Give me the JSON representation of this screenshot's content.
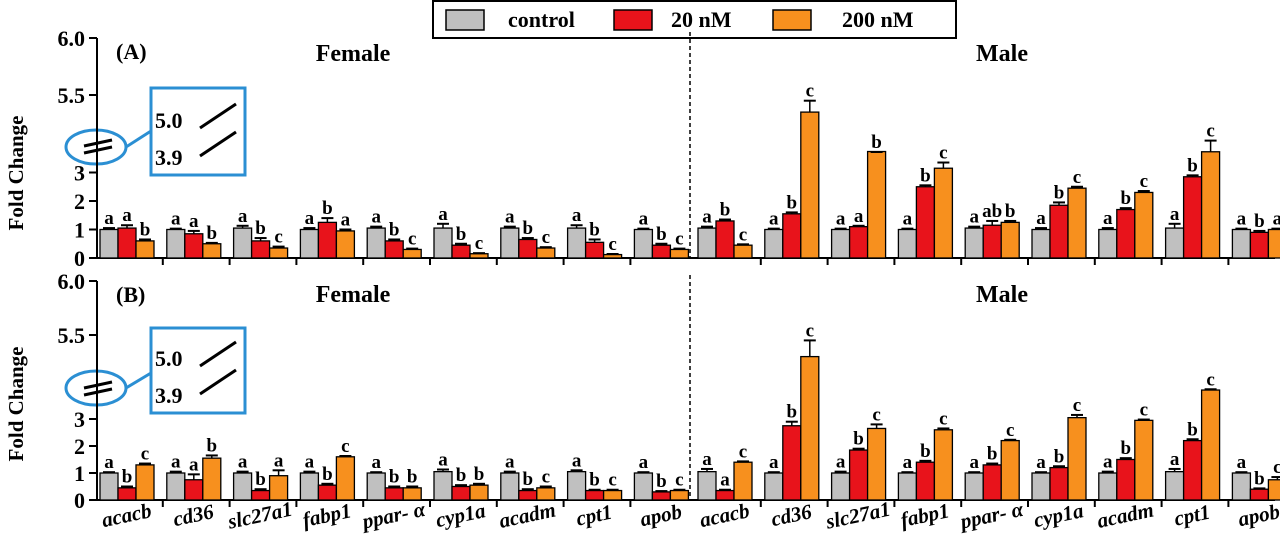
{
  "legend": {
    "entries": [
      {
        "label": "control",
        "color": "#c0c0c0"
      },
      {
        "label": "20 nM",
        "color": "#e8131b"
      },
      {
        "label": "200 nM",
        "color": "#f7901e"
      }
    ]
  },
  "inset_break": {
    "upper": "5.0",
    "lower": "3.9"
  },
  "genes": [
    "acacb",
    "cd36",
    "slc27a1",
    "fabp1",
    "ppar- α",
    "cyp1a",
    "acadm",
    "cpt1",
    "apob"
  ],
  "colors": {
    "control": "#c0c0c0",
    "nM20": "#e8131b",
    "nM200": "#f7901e",
    "inset": "#2b8fd3"
  },
  "chart_data": [
    {
      "type": "bar",
      "panel_label": "(A)",
      "ylabel": "Fold Change",
      "ylim": [
        0,
        6.0
      ],
      "y_axis_break": [
        3.9,
        5.0
      ],
      "yticks": [
        "0",
        "1",
        "2",
        "3",
        "5.5",
        "6.0"
      ],
      "groups": [
        {
          "title": "Female",
          "categories": [
            "acacb",
            "cd36",
            "slc27a1",
            "fabp1",
            "ppar- α",
            "cyp1a",
            "acadm",
            "cpt1",
            "apob"
          ],
          "series": [
            {
              "name": "control",
              "values": [
                1.0,
                1.0,
                1.05,
                1.0,
                1.05,
                1.05,
                1.05,
                1.05,
                1.0
              ],
              "errors": [
                0.05,
                0.03,
                0.08,
                0.05,
                0.05,
                0.15,
                0.05,
                0.1,
                0.03
              ],
              "letters": [
                "a",
                "a",
                "a",
                "a",
                "a",
                "a",
                "a",
                "a",
                "a"
              ]
            },
            {
              "name": "20 nM",
              "values": [
                1.05,
                0.85,
                0.6,
                1.25,
                0.6,
                0.45,
                0.65,
                0.55,
                0.45
              ],
              "errors": [
                0.1,
                0.1,
                0.1,
                0.15,
                0.05,
                0.05,
                0.05,
                0.1,
                0.05
              ],
              "letters": [
                "a",
                "a",
                "b",
                "b",
                "b",
                "b",
                "b",
                "b",
                "b"
              ]
            },
            {
              "name": "200 nM",
              "values": [
                0.6,
                0.5,
                0.35,
                0.95,
                0.3,
                0.15,
                0.35,
                0.12,
                0.3
              ],
              "errors": [
                0.05,
                0.03,
                0.05,
                0.05,
                0.03,
                0.02,
                0.03,
                0.02,
                0.03
              ],
              "letters": [
                "b",
                "b",
                "c",
                "a",
                "c",
                "c",
                "c",
                "c",
                "c"
              ]
            }
          ]
        },
        {
          "title": "Male",
          "categories": [
            "acacb",
            "cd36",
            "slc27a1",
            "fabp1",
            "ppar- α",
            "cyp1a",
            "acadm",
            "cpt1",
            "apob"
          ],
          "series": [
            {
              "name": "control",
              "values": [
                1.05,
                1.0,
                1.0,
                1.0,
                1.05,
                1.0,
                1.0,
                1.05,
                1.0
              ],
              "errors": [
                0.05,
                0.03,
                0.03,
                0.03,
                0.05,
                0.05,
                0.05,
                0.15,
                0.03
              ],
              "letters": [
                "a",
                "a",
                "a",
                "a",
                "a",
                "a",
                "a",
                "a",
                "a"
              ]
            },
            {
              "name": "20 nM",
              "values": [
                1.3,
                1.55,
                1.1,
                2.5,
                1.15,
                1.85,
                1.7,
                2.85,
                0.9
              ],
              "errors": [
                0.05,
                0.05,
                0.03,
                0.05,
                0.15,
                0.1,
                0.05,
                0.05,
                0.05
              ],
              "letters": [
                "b",
                "b",
                "a",
                "b",
                "ab",
                "b",
                "b",
                "b",
                "b"
              ]
            },
            {
              "name": "200 nM",
              "values": [
                0.45,
                5.35,
                4.9,
                3.15,
                1.25,
                2.45,
                2.3,
                4.95,
                1.0
              ],
              "errors": [
                0.03,
                0.1,
                0.1,
                0.2,
                0.05,
                0.05,
                0.05,
                0.15,
                0.03
              ],
              "letters": [
                "c",
                "c",
                "b",
                "c",
                "b",
                "c",
                "c",
                "c",
                "a"
              ]
            }
          ]
        }
      ]
    },
    {
      "type": "bar",
      "panel_label": "(B)",
      "ylabel": "Fold Change",
      "ylim": [
        0,
        6.0
      ],
      "y_axis_break": [
        3.9,
        5.0
      ],
      "yticks": [
        "0",
        "1",
        "2",
        "3",
        "5.5",
        "6.0"
      ],
      "groups": [
        {
          "title": "Female",
          "categories": [
            "acacb",
            "cd36",
            "slc27a1",
            "fabp1",
            "ppar- α",
            "cyp1a",
            "acadm",
            "cpt1",
            "apob"
          ],
          "series": [
            {
              "name": "control",
              "values": [
                1.0,
                1.0,
                1.0,
                1.0,
                1.0,
                1.05,
                1.0,
                1.05,
                1.0
              ],
              "errors": [
                0.03,
                0.05,
                0.05,
                0.05,
                0.03,
                0.08,
                0.05,
                0.05,
                0.03
              ],
              "letters": [
                "a",
                "a",
                "a",
                "a",
                "a",
                "a",
                "a",
                "a",
                "a"
              ]
            },
            {
              "name": "20 nM",
              "values": [
                0.45,
                0.75,
                0.35,
                0.55,
                0.45,
                0.5,
                0.35,
                0.35,
                0.3
              ],
              "errors": [
                0.05,
                0.2,
                0.05,
                0.05,
                0.05,
                0.05,
                0.05,
                0.03,
                0.03
              ],
              "letters": [
                "b",
                "a",
                "b",
                "b",
                "b",
                "b",
                "b",
                "b",
                "b"
              ]
            },
            {
              "name": "200 nM",
              "values": [
                1.3,
                1.55,
                0.9,
                1.6,
                0.45,
                0.55,
                0.45,
                0.35,
                0.35
              ],
              "errors": [
                0.05,
                0.1,
                0.2,
                0.03,
                0.05,
                0.05,
                0.05,
                0.03,
                0.03
              ],
              "letters": [
                "c",
                "b",
                "a",
                "c",
                "b",
                "b",
                "c",
                "c",
                "c"
              ]
            }
          ]
        },
        {
          "title": "Male",
          "categories": [
            "acacb",
            "cd36",
            "slc27a1",
            "fabp1",
            "ppar- α",
            "cyp1a",
            "acadm",
            "cpt1",
            "apob"
          ],
          "series": [
            {
              "name": "control",
              "values": [
                1.05,
                1.0,
                1.0,
                1.0,
                1.0,
                1.0,
                1.0,
                1.05,
                1.0
              ],
              "errors": [
                0.1,
                0.03,
                0.05,
                0.03,
                0.03,
                0.03,
                0.05,
                0.1,
                0.03
              ],
              "letters": [
                "a",
                "a",
                "a",
                "a",
                "a",
                "a",
                "a",
                "a",
                "a"
              ]
            },
            {
              "name": "20 nM",
              "values": [
                0.35,
                2.75,
                1.85,
                1.4,
                1.3,
                1.2,
                1.5,
                2.2,
                0.4
              ],
              "errors": [
                0.03,
                0.15,
                0.05,
                0.05,
                0.05,
                0.05,
                0.05,
                0.05,
                0.03
              ],
              "letters": [
                "a",
                "b",
                "b",
                "b",
                "b",
                "b",
                "b",
                "b",
                "b"
              ]
            },
            {
              "name": "200 nM",
              "values": [
                1.4,
                5.3,
                2.65,
                2.6,
                2.2,
                3.05,
                2.95,
                4.8,
                0.75
              ],
              "errors": [
                0.03,
                0.15,
                0.15,
                0.05,
                0.03,
                0.1,
                0.03,
                0.15,
                0.1
              ],
              "letters": [
                "c",
                "c",
                "c",
                "c",
                "c",
                "c",
                "c",
                "c",
                "c"
              ]
            }
          ]
        }
      ]
    }
  ]
}
